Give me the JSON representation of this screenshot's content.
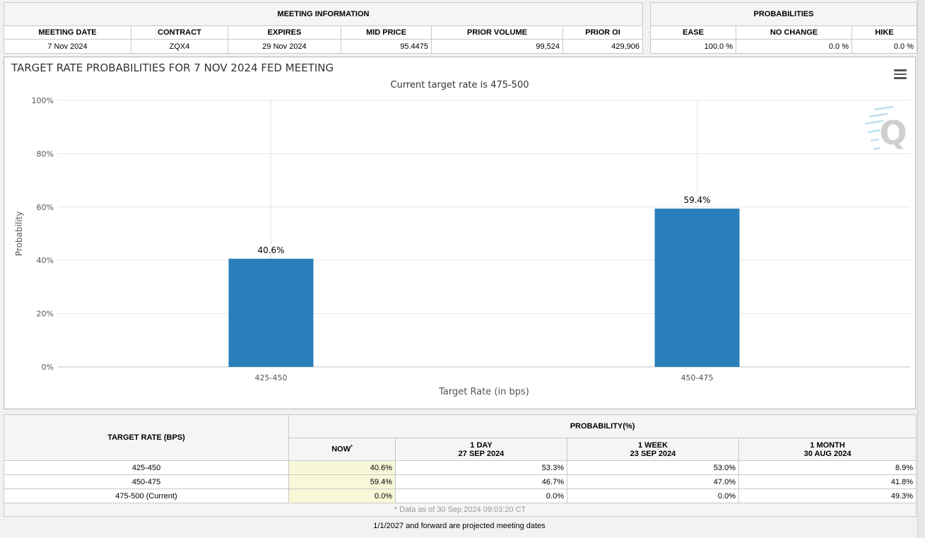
{
  "meeting_info": {
    "title": "MEETING INFORMATION",
    "columns": [
      "MEETING DATE",
      "CONTRACT",
      "EXPIRES",
      "MID PRICE",
      "PRIOR VOLUME",
      "PRIOR OI"
    ],
    "values": [
      "7 Nov 2024",
      "ZQX4",
      "29 Nov 2024",
      "95.4475",
      "99,524",
      "429,906"
    ]
  },
  "probabilities": {
    "title": "PROBABILITIES",
    "columns": [
      "EASE",
      "NO CHANGE",
      "HIKE"
    ],
    "values": [
      "100.0 %",
      "0.0 %",
      "0.0 %"
    ]
  },
  "chart_data": {
    "type": "bar",
    "title": "TARGET RATE PROBABILITIES FOR 7 NOV 2024 FED MEETING",
    "subtitle": "Current target rate is 475-500",
    "xlabel": "Target Rate (in bps)",
    "ylabel": "Probability",
    "categories": [
      "425-450",
      "450-475"
    ],
    "values": [
      40.6,
      59.4
    ],
    "data_labels": [
      "40.6%",
      "59.4%"
    ],
    "ylim": [
      0,
      100
    ],
    "yticks": [
      0,
      20,
      40,
      60,
      80,
      100
    ],
    "ytick_labels": [
      "0%",
      "20%",
      "40%",
      "60%",
      "80%",
      "100%"
    ],
    "bar_color": "#2a7fba",
    "grid": true,
    "legend": "none"
  },
  "prob_table": {
    "target_rate_header": "TARGET RATE (BPS)",
    "probability_header": "PROBABILITY(%)",
    "now_label": "NOW",
    "now_marker": "*",
    "periods": [
      {
        "label": "1 DAY",
        "date": "27 SEP 2024"
      },
      {
        "label": "1 WEEK",
        "date": "23 SEP 2024"
      },
      {
        "label": "1 MONTH",
        "date": "30 AUG 2024"
      }
    ],
    "rows": [
      {
        "rate": "425-450",
        "now": "40.6%",
        "day": "53.3%",
        "week": "53.0%",
        "month": "8.9%"
      },
      {
        "rate": "450-475",
        "now": "59.4%",
        "day": "46.7%",
        "week": "47.0%",
        "month": "41.8%"
      },
      {
        "rate": "475-500 (Current)",
        "now": "0.0%",
        "day": "0.0%",
        "week": "0.0%",
        "month": "49.3%"
      }
    ],
    "data_note": "* Data as of 30 Sep 2024 09:03:20 CT"
  },
  "footer_note": "1/1/2027 and forward are projected meeting dates"
}
